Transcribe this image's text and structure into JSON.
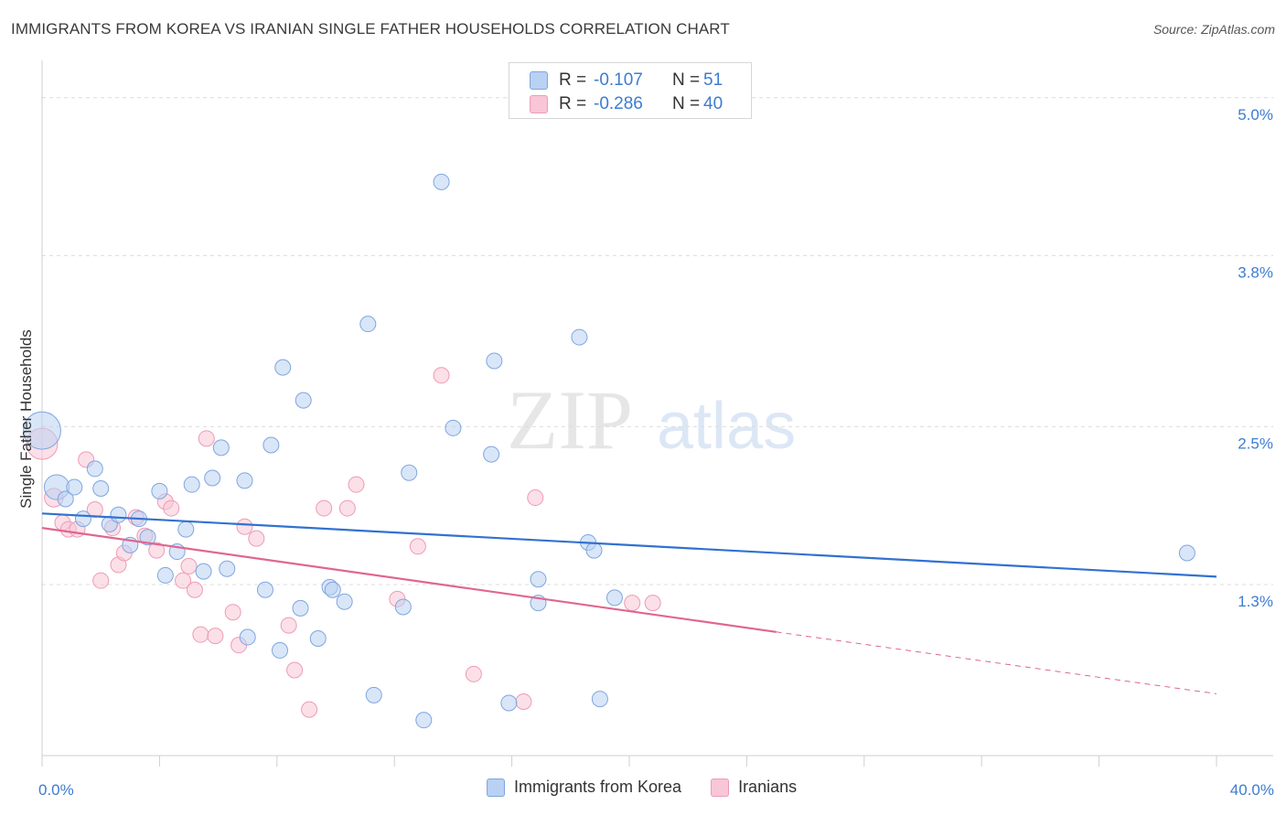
{
  "title": "IMMIGRANTS FROM KOREA VS IRANIAN SINGLE FATHER HOUSEHOLDS CORRELATION CHART",
  "source": "Source: ZipAtlas.com",
  "watermark": {
    "zip": "ZIP",
    "atlas": "atlas"
  },
  "colors": {
    "blue_fill": "#b9d1f3",
    "blue_stroke": "#7ea6e0",
    "blue_line": "#3271d0",
    "pink_fill": "#f8c6d6",
    "pink_stroke": "#ef9ab7",
    "pink_line": "#e0668f",
    "axis_label": "#3d7cd1",
    "grid": "#dcdcdc"
  },
  "legend_top": {
    "rows": [
      {
        "r_label": "R =",
        "r_value": "-0.107",
        "n_label": "N =",
        "n_value": "51"
      },
      {
        "r_label": "R =",
        "r_value": "-0.286",
        "n_label": "N =",
        "n_value": "40"
      }
    ]
  },
  "legend_bottom": {
    "items": [
      "Immigrants from Korea",
      "Iranians"
    ]
  },
  "chart_data": {
    "type": "scatter",
    "title": "IMMIGRANTS FROM KOREA VS IRANIAN SINGLE FATHER HOUSEHOLDS CORRELATION CHART",
    "xlabel": "",
    "ylabel": "Single Father Households",
    "xlim": [
      0,
      40
    ],
    "ylim": [
      0,
      5.2
    ],
    "x_tick_labels": [
      "0.0%",
      "40.0%"
    ],
    "y_ticks": [
      1.3,
      2.5,
      3.8,
      5.0
    ],
    "y_tick_labels": [
      "1.3%",
      "2.5%",
      "3.8%",
      "5.0%"
    ],
    "grid": "horizontal dashed",
    "legend_placement": "top-center",
    "series": [
      {
        "name": "Immigrants from Korea",
        "r": -0.107,
        "n": 51,
        "trend": {
          "x0": 0,
          "y0": 1.84,
          "x1": 40,
          "y1": 1.36
        },
        "points": [
          {
            "x": 0.0,
            "y": 2.47,
            "s": 2.4
          },
          {
            "x": 0.5,
            "y": 2.04,
            "s": 1.6
          },
          {
            "x": 0.8,
            "y": 1.95,
            "s": 1
          },
          {
            "x": 1.1,
            "y": 2.04,
            "s": 1
          },
          {
            "x": 1.4,
            "y": 1.8,
            "s": 1
          },
          {
            "x": 1.8,
            "y": 2.18,
            "s": 1
          },
          {
            "x": 2.0,
            "y": 2.03,
            "s": 1
          },
          {
            "x": 2.3,
            "y": 1.76,
            "s": 1
          },
          {
            "x": 2.6,
            "y": 1.83,
            "s": 1
          },
          {
            "x": 3.0,
            "y": 1.6,
            "s": 1
          },
          {
            "x": 3.3,
            "y": 1.8,
            "s": 1
          },
          {
            "x": 3.6,
            "y": 1.66,
            "s": 1
          },
          {
            "x": 4.0,
            "y": 2.01,
            "s": 1
          },
          {
            "x": 4.2,
            "y": 1.37,
            "s": 1
          },
          {
            "x": 4.6,
            "y": 1.55,
            "s": 1
          },
          {
            "x": 4.9,
            "y": 1.72,
            "s": 1
          },
          {
            "x": 5.1,
            "y": 2.06,
            "s": 1
          },
          {
            "x": 5.5,
            "y": 1.4,
            "s": 1
          },
          {
            "x": 5.8,
            "y": 2.11,
            "s": 1
          },
          {
            "x": 6.1,
            "y": 2.34,
            "s": 1
          },
          {
            "x": 6.3,
            "y": 1.42,
            "s": 1
          },
          {
            "x": 6.9,
            "y": 2.09,
            "s": 1
          },
          {
            "x": 7.0,
            "y": 0.9,
            "s": 1
          },
          {
            "x": 7.6,
            "y": 1.26,
            "s": 1
          },
          {
            "x": 7.8,
            "y": 2.36,
            "s": 1
          },
          {
            "x": 8.1,
            "y": 0.8,
            "s": 1
          },
          {
            "x": 8.2,
            "y": 2.95,
            "s": 1
          },
          {
            "x": 8.8,
            "y": 1.12,
            "s": 1
          },
          {
            "x": 8.9,
            "y": 2.7,
            "s": 1
          },
          {
            "x": 9.4,
            "y": 0.89,
            "s": 1
          },
          {
            "x": 9.8,
            "y": 1.28,
            "s": 1
          },
          {
            "x": 9.9,
            "y": 1.26,
            "s": 1
          },
          {
            "x": 10.3,
            "y": 1.17,
            "s": 1
          },
          {
            "x": 11.1,
            "y": 3.28,
            "s": 1
          },
          {
            "x": 11.3,
            "y": 0.46,
            "s": 1
          },
          {
            "x": 12.3,
            "y": 1.13,
            "s": 1
          },
          {
            "x": 12.5,
            "y": 2.15,
            "s": 1
          },
          {
            "x": 13.0,
            "y": 0.27,
            "s": 1
          },
          {
            "x": 13.6,
            "y": 4.36,
            "s": 1
          },
          {
            "x": 14.0,
            "y": 2.49,
            "s": 1
          },
          {
            "x": 15.3,
            "y": 2.29,
            "s": 1
          },
          {
            "x": 15.4,
            "y": 3.0,
            "s": 1
          },
          {
            "x": 15.9,
            "y": 0.4,
            "s": 1
          },
          {
            "x": 16.9,
            "y": 1.34,
            "s": 1
          },
          {
            "x": 16.9,
            "y": 1.16,
            "s": 1
          },
          {
            "x": 18.3,
            "y": 3.18,
            "s": 1
          },
          {
            "x": 18.6,
            "y": 1.62,
            "s": 1
          },
          {
            "x": 18.8,
            "y": 1.56,
            "s": 1
          },
          {
            "x": 19.0,
            "y": 0.43,
            "s": 1
          },
          {
            "x": 19.5,
            "y": 1.2,
            "s": 1
          },
          {
            "x": 39.0,
            "y": 1.54,
            "s": 1
          }
        ]
      },
      {
        "name": "Iranians",
        "r": -0.286,
        "n": 40,
        "trend": {
          "x0": 0,
          "y0": 1.73,
          "x1": 25,
          "y1": 0.94
        },
        "trend_extension": {
          "x0": 25,
          "y0": 0.94,
          "x1": 40,
          "y1": 0.47
        },
        "points": [
          {
            "x": 0.0,
            "y": 2.37,
            "s": 2
          },
          {
            "x": 0.4,
            "y": 1.96,
            "s": 1.2
          },
          {
            "x": 0.7,
            "y": 1.77,
            "s": 1
          },
          {
            "x": 0.9,
            "y": 1.72,
            "s": 1
          },
          {
            "x": 1.2,
            "y": 1.72,
            "s": 1
          },
          {
            "x": 1.5,
            "y": 2.25,
            "s": 1
          },
          {
            "x": 1.8,
            "y": 1.87,
            "s": 1
          },
          {
            "x": 2.0,
            "y": 1.33,
            "s": 1
          },
          {
            "x": 2.4,
            "y": 1.73,
            "s": 1
          },
          {
            "x": 2.6,
            "y": 1.45,
            "s": 1
          },
          {
            "x": 2.8,
            "y": 1.54,
            "s": 1
          },
          {
            "x": 3.2,
            "y": 1.81,
            "s": 1
          },
          {
            "x": 3.5,
            "y": 1.67,
            "s": 1
          },
          {
            "x": 3.9,
            "y": 1.56,
            "s": 1
          },
          {
            "x": 4.2,
            "y": 1.93,
            "s": 1
          },
          {
            "x": 4.4,
            "y": 1.88,
            "s": 1
          },
          {
            "x": 4.8,
            "y": 1.33,
            "s": 1
          },
          {
            "x": 5.0,
            "y": 1.44,
            "s": 1
          },
          {
            "x": 5.2,
            "y": 1.26,
            "s": 1
          },
          {
            "x": 5.4,
            "y": 0.92,
            "s": 1
          },
          {
            "x": 5.6,
            "y": 2.41,
            "s": 1
          },
          {
            "x": 5.9,
            "y": 0.91,
            "s": 1
          },
          {
            "x": 6.5,
            "y": 1.09,
            "s": 1
          },
          {
            "x": 6.7,
            "y": 0.84,
            "s": 1
          },
          {
            "x": 6.9,
            "y": 1.74,
            "s": 1
          },
          {
            "x": 7.3,
            "y": 1.65,
            "s": 1
          },
          {
            "x": 8.4,
            "y": 0.99,
            "s": 1
          },
          {
            "x": 8.6,
            "y": 0.65,
            "s": 1
          },
          {
            "x": 9.1,
            "y": 0.35,
            "s": 1
          },
          {
            "x": 9.6,
            "y": 1.88,
            "s": 1
          },
          {
            "x": 10.4,
            "y": 1.88,
            "s": 1
          },
          {
            "x": 10.7,
            "y": 2.06,
            "s": 1
          },
          {
            "x": 12.1,
            "y": 1.19,
            "s": 1
          },
          {
            "x": 12.8,
            "y": 1.59,
            "s": 1
          },
          {
            "x": 13.6,
            "y": 2.89,
            "s": 1
          },
          {
            "x": 14.7,
            "y": 0.62,
            "s": 1
          },
          {
            "x": 16.4,
            "y": 0.41,
            "s": 1
          },
          {
            "x": 16.8,
            "y": 1.96,
            "s": 1
          },
          {
            "x": 20.1,
            "y": 1.16,
            "s": 1
          },
          {
            "x": 20.8,
            "y": 1.16,
            "s": 1
          }
        ]
      }
    ]
  }
}
